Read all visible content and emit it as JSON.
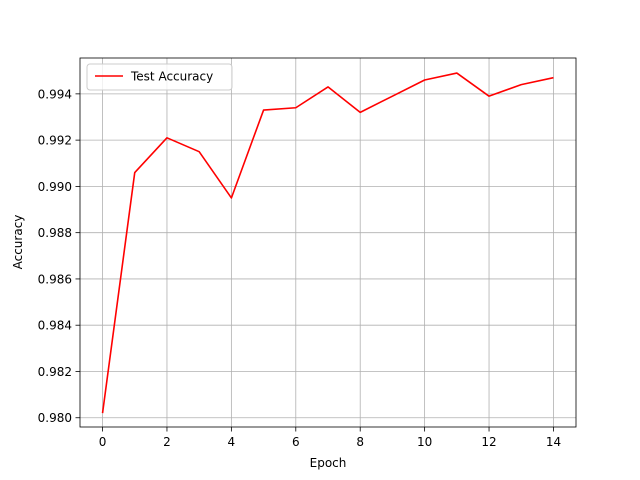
{
  "chart_data": {
    "type": "line",
    "title": "",
    "xlabel": "Epoch",
    "ylabel": "Accuracy",
    "xlim": [
      -0.7,
      14.7
    ],
    "ylim": [
      0.9796,
      0.99555
    ],
    "xticks": [
      0,
      2,
      4,
      6,
      8,
      10,
      12,
      14
    ],
    "yticks": [
      0.98,
      0.982,
      0.984,
      0.986,
      0.988,
      0.99,
      0.992,
      0.994
    ],
    "ytick_labels": [
      "0.980",
      "0.982",
      "0.984",
      "0.986",
      "0.988",
      "0.990",
      "0.992",
      "0.994"
    ],
    "grid": true,
    "legend": "top-left",
    "series": [
      {
        "name": "Test Accuracy",
        "color": "#ff0000",
        "x": [
          0,
          1,
          2,
          3,
          4,
          5,
          6,
          7,
          8,
          9,
          10,
          11,
          12,
          13,
          14
        ],
        "y": [
          0.9802,
          0.9906,
          0.9921,
          0.9915,
          0.9895,
          0.9933,
          0.9934,
          0.9943,
          0.9932,
          0.9939,
          0.9946,
          0.9949,
          0.9939,
          0.9944,
          0.9947
        ]
      }
    ]
  }
}
